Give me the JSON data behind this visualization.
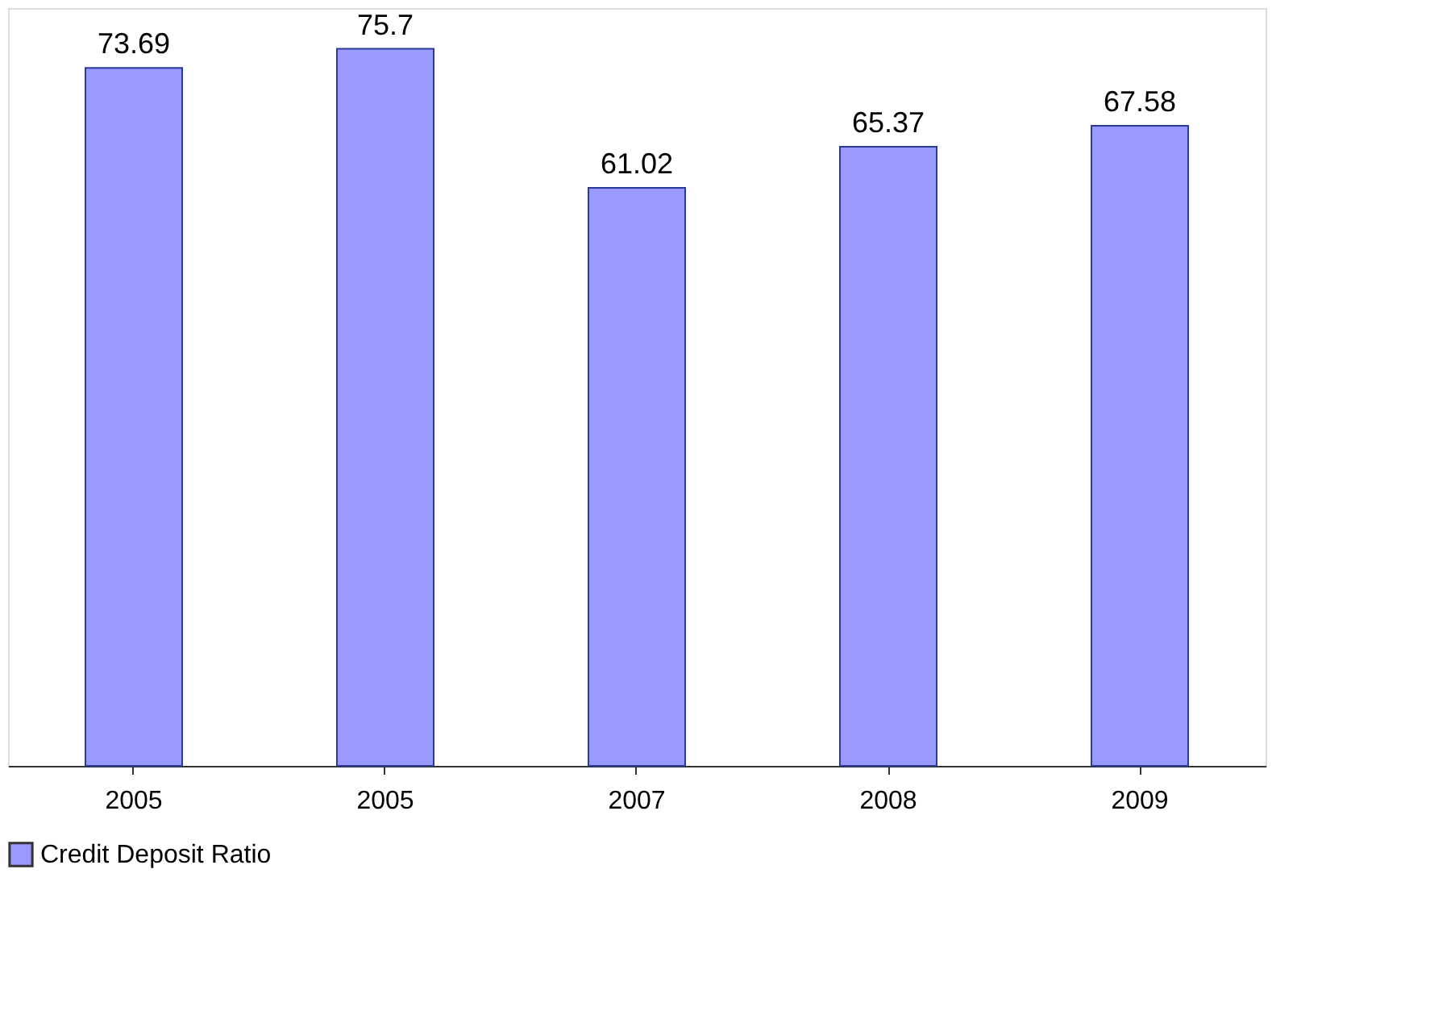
{
  "chart_data": {
    "type": "bar",
    "categories": [
      "2005",
      "2005",
      "2007",
      "2008",
      "2009"
    ],
    "series": [
      {
        "name": "Credit Deposit Ratio",
        "color": "#9999ff",
        "values": [
          73.69,
          75.7,
          61.02,
          65.37,
          67.58
        ]
      }
    ],
    "data_labels": true,
    "legend": "bottom",
    "grid": false
  }
}
